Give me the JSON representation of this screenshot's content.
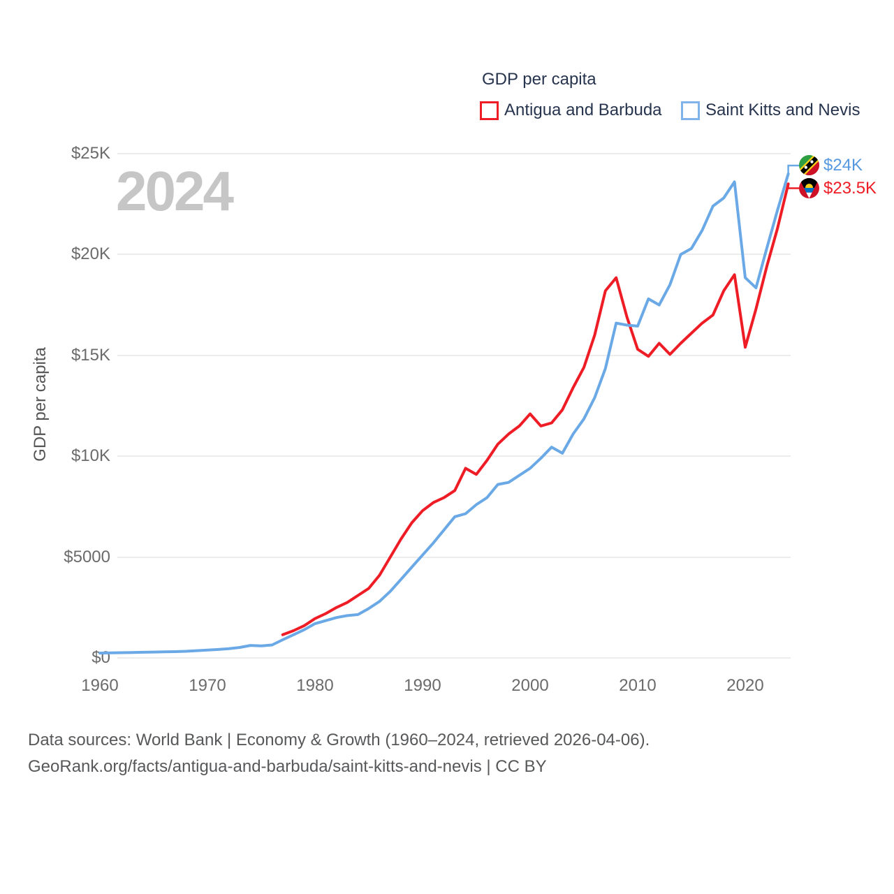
{
  "legend": {
    "title": "GDP per capita",
    "series": [
      {
        "label": "Antigua and Barbuda",
        "color": "#ee1c25"
      },
      {
        "label": "Saint Kitts and Nevis",
        "color": "#6aa9e6"
      }
    ]
  },
  "watermark": {
    "text": "2024"
  },
  "y_axis": {
    "title": "GDP per capita",
    "ticks": [
      {
        "label": "$0",
        "value": 0
      },
      {
        "label": "$5000",
        "value": 5000
      },
      {
        "label": "$10K",
        "value": 10000
      },
      {
        "label": "$15K",
        "value": 15000
      },
      {
        "label": "$20K",
        "value": 20000
      },
      {
        "label": "$25K",
        "value": 25000
      }
    ]
  },
  "x_axis": {
    "ticks": [
      {
        "label": "1960",
        "year": 1960
      },
      {
        "label": "1970",
        "year": 1970
      },
      {
        "label": "1980",
        "year": 1980
      },
      {
        "label": "1990",
        "year": 1990
      },
      {
        "label": "2000",
        "year": 2000
      },
      {
        "label": "2010",
        "year": 2010
      },
      {
        "label": "2020",
        "year": 2020
      }
    ]
  },
  "end_labels": [
    {
      "series": "Saint Kitts and Nevis",
      "text": "$24K",
      "color": "#5699e0",
      "flag": "saint-kitts-and-nevis"
    },
    {
      "series": "Antigua and Barbuda",
      "text": "$23.5K",
      "color": "#ee1c25",
      "flag": "antigua-and-barbuda"
    }
  ],
  "source": {
    "line1": "Data sources: World Bank | Economy & Growth (1960–2024, retrieved 2026-04-06).",
    "line2": "GeoRank.org/facts/antigua-and-barbuda/saint-kitts-and-nevis | CC BY"
  },
  "chart_data": {
    "type": "line",
    "title": "GDP per capita",
    "xlabel": "",
    "ylabel": "GDP per capita",
    "x_range": [
      1960,
      2024
    ],
    "y_range": [
      0,
      25000
    ],
    "grid": "horizontal",
    "legend_position": "top-right",
    "series": [
      {
        "name": "Antigua and Barbuda",
        "color": "#ee1c25",
        "start_year": 1977,
        "end_year": 2024,
        "end_label": "$23.5K",
        "values": [
          1150,
          1350,
          1600,
          1950,
          2200,
          2500,
          2750,
          3100,
          3450,
          4100,
          5000,
          5900,
          6700,
          7300,
          7700,
          7950,
          8300,
          9400,
          9100,
          9800,
          10600,
          11100,
          11500,
          12100,
          11500,
          11650,
          12300,
          13400,
          14400,
          16000,
          18200,
          18850,
          16900,
          15300,
          14950,
          15600,
          15050,
          15600,
          16100,
          16600,
          17000,
          18200,
          19000,
          15400,
          17300,
          19400,
          21300,
          23500
        ]
      },
      {
        "name": "Saint Kitts and Nevis",
        "color": "#6aa9e6",
        "start_year": 1960,
        "end_year": 2024,
        "end_label": "$24K",
        "values": [
          240,
          250,
          260,
          270,
          280,
          290,
          300,
          310,
          330,
          360,
          390,
          420,
          460,
          520,
          620,
          600,
          640,
          900,
          1150,
          1400,
          1700,
          1850,
          2000,
          2100,
          2150,
          2450,
          2800,
          3300,
          3900,
          4500,
          5100,
          5700,
          6350,
          7000,
          7150,
          7600,
          7950,
          8600,
          8700,
          9050,
          9400,
          9900,
          10450,
          10150,
          11100,
          11850,
          12900,
          14350,
          16600,
          16500,
          16450,
          17800,
          17500,
          18500,
          20000,
          20300,
          21200,
          22400,
          22800,
          23600,
          18850,
          18350,
          20300,
          22200,
          24000
        ]
      }
    ]
  }
}
